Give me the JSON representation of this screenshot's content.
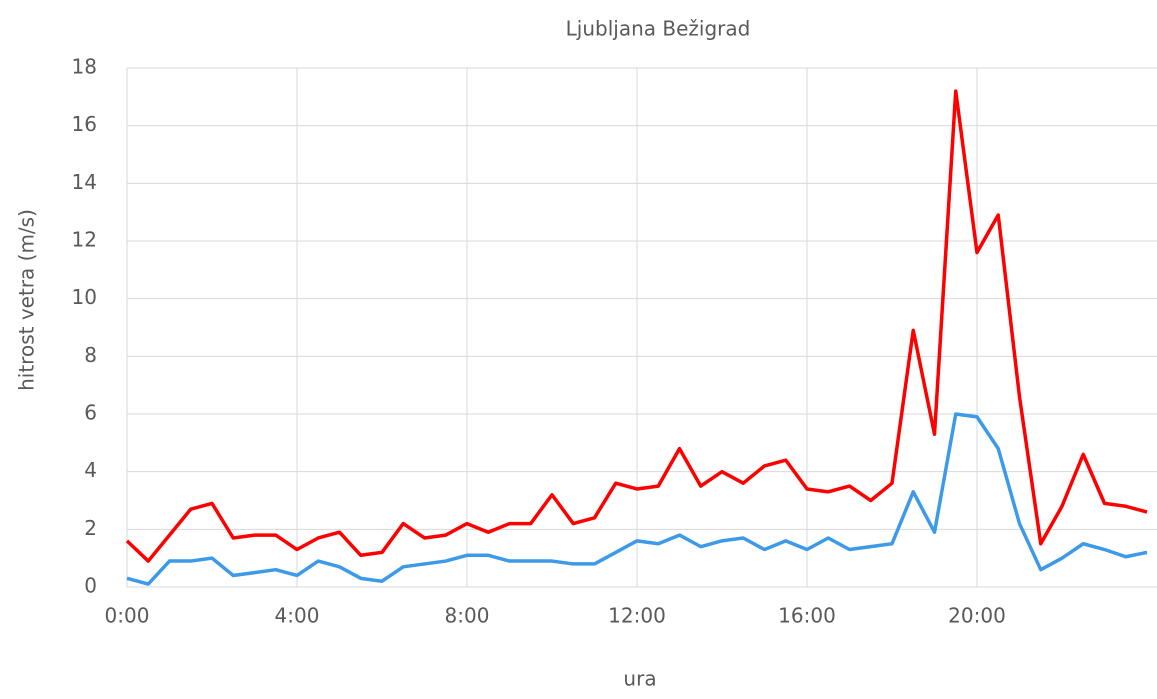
{
  "chart_data": {
    "type": "line",
    "title": "Ljubljana Bežigrad",
    "xlabel": "ura",
    "ylabel": "hitrost vetra (m/s)",
    "x": [
      0,
      0.5,
      1,
      1.5,
      2,
      2.5,
      3,
      3.5,
      4,
      4.5,
      5,
      5.5,
      6,
      6.5,
      7,
      7.5,
      8,
      8.5,
      9,
      9.5,
      10,
      10.5,
      11,
      11.5,
      12,
      12.5,
      13,
      13.5,
      14,
      14.5,
      15,
      15.5,
      16,
      16.5,
      17,
      17.5,
      18,
      18.5,
      19,
      19.5,
      20,
      20.5,
      21,
      21.5,
      22,
      22.5,
      23,
      23.5,
      24
    ],
    "series": [
      {
        "color": "#ff0000",
        "values": [
          1.6,
          0.9,
          1.8,
          2.7,
          2.9,
          1.7,
          1.8,
          1.8,
          1.3,
          1.7,
          1.9,
          1.1,
          1.2,
          2.2,
          1.7,
          1.8,
          2.2,
          1.9,
          2.2,
          2.2,
          3.2,
          2.2,
          2.4,
          3.6,
          3.4,
          3.5,
          4.8,
          3.5,
          4.0,
          3.6,
          4.2,
          4.4,
          3.4,
          3.3,
          3.5,
          3.0,
          3.6,
          8.9,
          5.3,
          17.2,
          11.6,
          12.9,
          6.6,
          1.5,
          2.8,
          4.6,
          2.9,
          2.8,
          2.6
        ]
      },
      {
        "color": "#3c9ae8",
        "values": [
          0.3,
          0.1,
          0.9,
          0.9,
          1.0,
          0.4,
          0.5,
          0.6,
          0.4,
          0.9,
          0.7,
          0.3,
          0.2,
          0.7,
          0.8,
          0.9,
          1.1,
          1.1,
          0.9,
          0.9,
          0.9,
          0.8,
          0.8,
          1.2,
          1.6,
          1.5,
          1.8,
          1.4,
          1.6,
          1.7,
          1.3,
          1.6,
          1.3,
          1.7,
          1.3,
          1.4,
          1.5,
          3.3,
          1.9,
          6.0,
          5.9,
          4.8,
          2.2,
          0.6,
          1.0,
          1.5,
          1.3,
          1.05,
          1.2
        ]
      }
    ],
    "xlim": [
      0,
      24
    ],
    "xticks": [
      {
        "value": 0,
        "label": "0:00"
      },
      {
        "value": 4,
        "label": "4:00"
      },
      {
        "value": 8,
        "label": "8:00"
      },
      {
        "value": 12,
        "label": "12:00"
      },
      {
        "value": 16,
        "label": "16:00"
      },
      {
        "value": 20,
        "label": "20:00"
      }
    ],
    "ylim": [
      0,
      18
    ],
    "yticks": [
      0,
      2,
      4,
      6,
      8,
      10,
      12,
      14,
      16,
      18
    ],
    "grid": true
  }
}
